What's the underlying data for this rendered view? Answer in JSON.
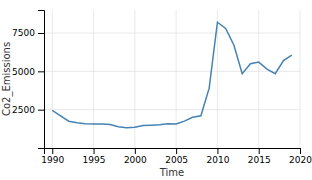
{
  "chart_data": {
    "type": "line",
    "xlabel": "Time",
    "ylabel": "Co2_Emissions",
    "x": [
      1990,
      1991,
      1992,
      1993,
      1994,
      1995,
      1996,
      1997,
      1998,
      1999,
      2000,
      2001,
      2002,
      2003,
      2004,
      2005,
      2006,
      2007,
      2008,
      2009,
      2010,
      2011,
      2012,
      2013,
      2014,
      2015,
      2016,
      2017,
      2018,
      2019
    ],
    "values": [
      2450,
      2100,
      1750,
      1650,
      1580,
      1560,
      1570,
      1530,
      1380,
      1320,
      1350,
      1470,
      1490,
      1510,
      1580,
      1570,
      1750,
      2000,
      2100,
      3900,
      8200,
      7800,
      6700,
      4850,
      5500,
      5600,
      5150,
      4850,
      5700,
      6050
    ],
    "xlim": [
      1989,
      2020
    ],
    "ylim": [
      0,
      9000
    ],
    "xticks": [
      1990,
      1995,
      2000,
      2005,
      2010,
      2015,
      2020
    ],
    "yticks": [
      2500,
      5000,
      7500
    ],
    "grid": true
  }
}
